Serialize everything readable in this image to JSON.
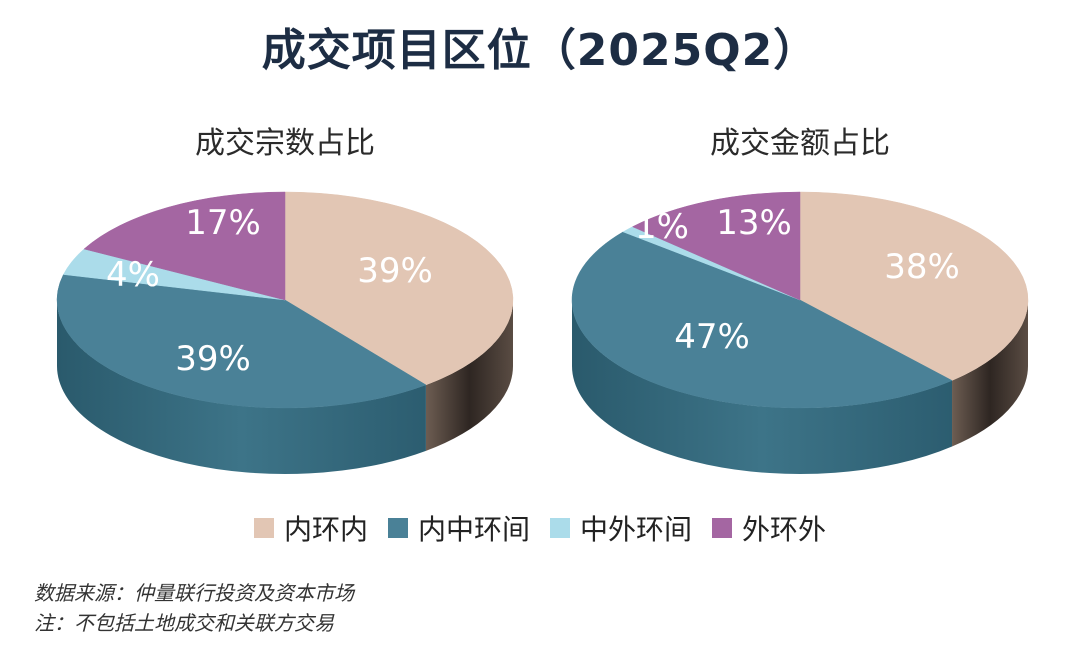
{
  "title": "成交项目区位（2025Q2）",
  "colors": {
    "内环内": "#e2c6b4",
    "内中环间": "#4a8197",
    "中外环间": "#abdcea",
    "外环外": "#a466a2"
  },
  "chart_data": [
    {
      "type": "pie",
      "title": "成交宗数占比",
      "categories": [
        "内环内",
        "内中环间",
        "中外环间",
        "外环外"
      ],
      "values": [
        39,
        39,
        4,
        17
      ],
      "labels": [
        "39%",
        "39%",
        "4%",
        "17%"
      ]
    },
    {
      "type": "pie",
      "title": "成交金额占比",
      "categories": [
        "内环内",
        "内中环间",
        "中外环间",
        "外环外"
      ],
      "values": [
        38,
        47,
        1,
        13
      ],
      "labels": [
        "38%",
        "47%",
        "1%",
        "13%"
      ]
    }
  ],
  "legend": {
    "items": [
      "内环内",
      "内中环间",
      "中外环间",
      "外环外"
    ]
  },
  "notes": {
    "source": "数据来源：仲量联行投资及资本市场",
    "note": "注：不包括土地成交和关联方交易"
  }
}
